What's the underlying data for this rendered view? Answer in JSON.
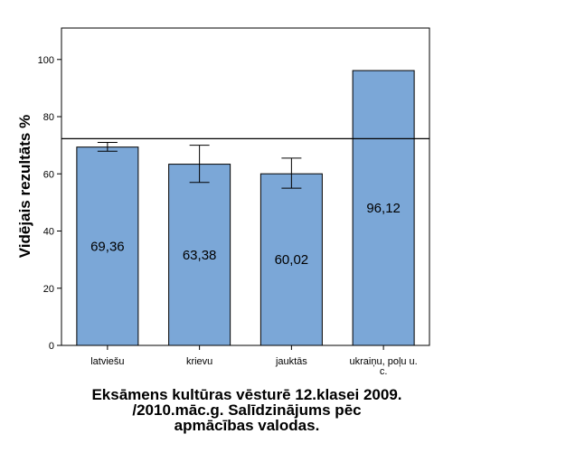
{
  "chart_data": {
    "type": "bar",
    "categories": [
      "latviešu",
      "krievu",
      "jauktās",
      "ukraiņu, poļu u. c."
    ],
    "values": [
      69.36,
      63.38,
      60.02,
      96.12
    ],
    "value_labels": [
      "69,36",
      "63,38",
      "60,02",
      "96,12"
    ],
    "error_bars": [
      {
        "low": 67.9,
        "high": 71.0
      },
      {
        "low": 57.0,
        "high": 70.0
      },
      {
        "low": 55.0,
        "high": 65.5
      },
      null
    ],
    "reference_line": 72.3,
    "ylabel": "Vidējais rezultāts %",
    "yticks": [
      0,
      20,
      40,
      60,
      80,
      100
    ],
    "ylim": [
      0,
      111
    ],
    "grid": false,
    "bar_color": "#7ba7d7",
    "caption_lines": [
      "Eksāmens kultūras vēsturē 12.klasei 2009.",
      "/2010.māc.g. Salīdzinājums pēc",
      "apmācības valodas."
    ]
  }
}
